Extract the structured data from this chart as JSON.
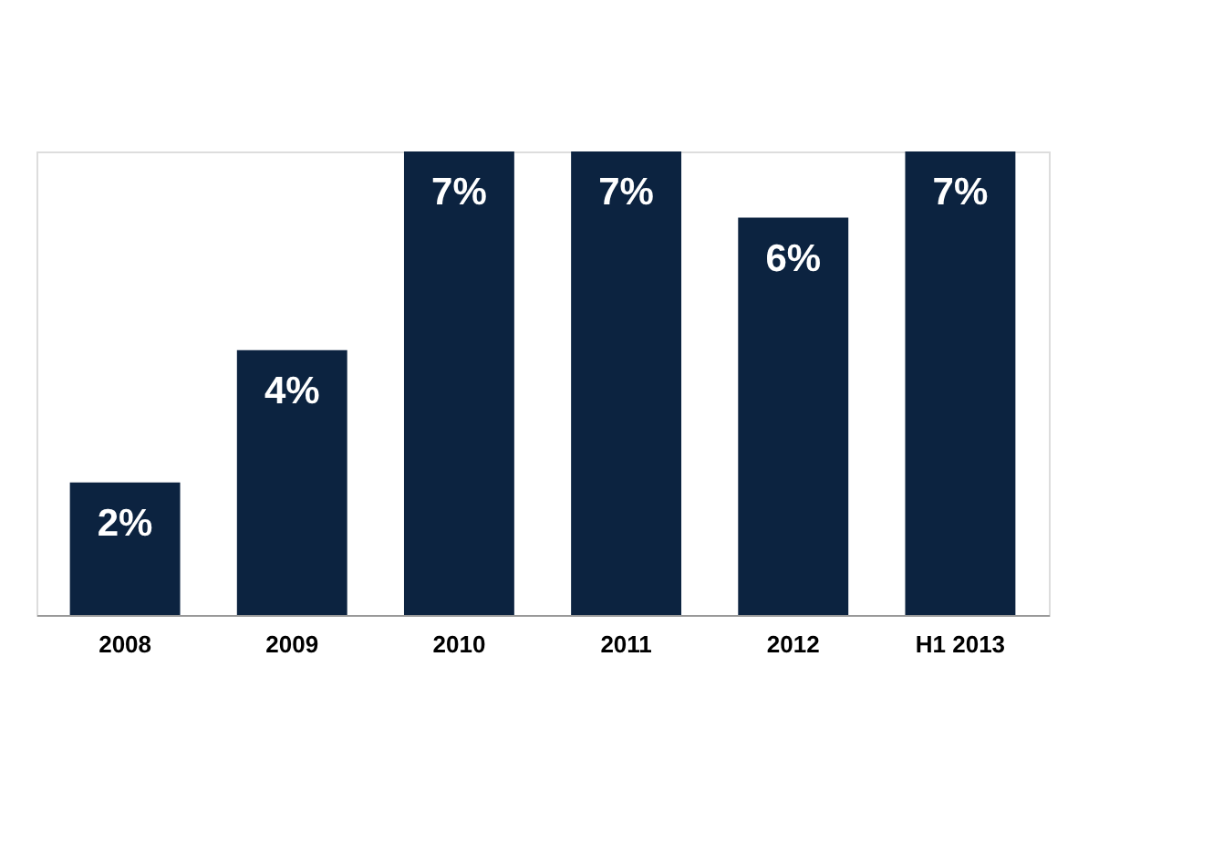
{
  "chart_data": {
    "type": "bar",
    "categories": [
      "2008",
      "2009",
      "2010",
      "2011",
      "2012",
      "H1 2013"
    ],
    "values": [
      2,
      4,
      7,
      7,
      6,
      7
    ],
    "value_labels": [
      "2%",
      "4%",
      "7%",
      "7%",
      "6%",
      "7%"
    ],
    "color": "#0c2340",
    "tick_labels": "x"
  }
}
